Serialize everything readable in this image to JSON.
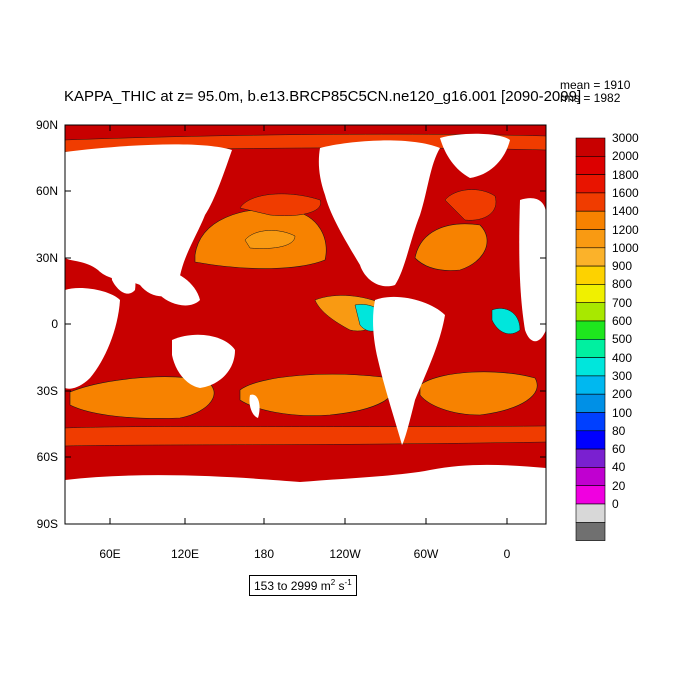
{
  "title": "KAPPA_THIC at z=  95.0m, b.e13.BRCP85C5CN.ne120_g16.001 [2090-2099]",
  "stats": {
    "mean": "mean = 1910",
    "rms": "rms = 1982"
  },
  "range_label": {
    "text": "153 to 2999 m",
    "unit_sup1": "2",
    "unit_mid": " s",
    "unit_sup2": "-1"
  },
  "lat_labels": [
    "90N",
    "60N",
    "30N",
    "0",
    "30S",
    "60S",
    "90S"
  ],
  "lon_labels": [
    "60E",
    "120E",
    "180",
    "120W",
    "60W",
    "0"
  ],
  "colorbar": {
    "labels": [
      "3000",
      "2000",
      "1800",
      "1600",
      "1400",
      "1200",
      "1000",
      "900",
      "800",
      "700",
      "600",
      "500",
      "400",
      "300",
      "200",
      "100",
      "80",
      "60",
      "40",
      "20",
      "0"
    ],
    "colors": [
      "#c80000",
      "#dc0000",
      "#e81400",
      "#f03c00",
      "#f78200",
      "#f99a12",
      "#fbb22a",
      "#fdd200",
      "#f0f000",
      "#a8e800",
      "#1ee61e",
      "#00f0a0",
      "#00e6dc",
      "#00b8f0",
      "#0090e6",
      "#0040ff",
      "#0000ff",
      "#7a20d0",
      "#c000d0",
      "#f000e0",
      "#d8d8d8",
      "#707070"
    ]
  },
  "map": {
    "ocean_base_color": "#c80000",
    "land_color": "#ffffff",
    "contour_color": "#1a1a1a"
  }
}
